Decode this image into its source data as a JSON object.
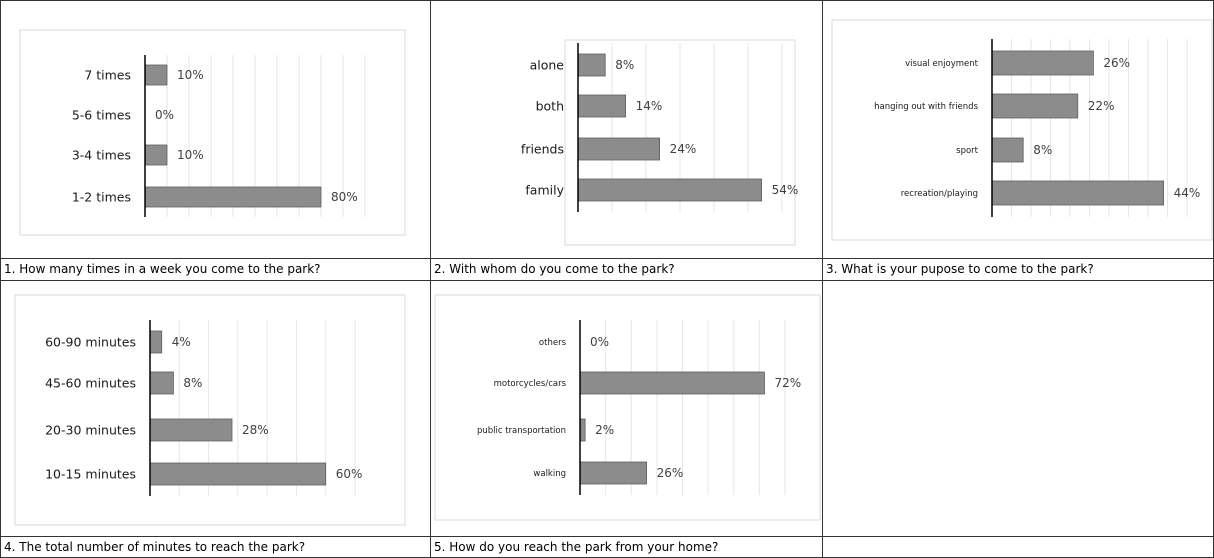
{
  "colors": {
    "bar": "#8c8c8c",
    "border": "#333333"
  },
  "captions": [
    "1. How many times in a week you come to the park?",
    "2. With whom do you come to the park?",
    "3. What is your pupose to come to the park?",
    "4. The total number of minutes to reach the park?",
    "5. How do you reach the park from your home?"
  ],
  "chart_data": [
    {
      "type": "bar",
      "orientation": "horizontal",
      "categories": [
        "7 times",
        "5-6 times",
        "3-4 times",
        "1-2 times"
      ],
      "values": [
        10,
        0,
        10,
        80
      ],
      "value_labels": [
        "10%",
        "0%",
        "10%",
        "80%"
      ],
      "xlim": [
        0,
        100
      ],
      "grid": true
    },
    {
      "type": "bar",
      "orientation": "horizontal",
      "categories": [
        "alone",
        "both",
        "friends",
        "family"
      ],
      "values": [
        8,
        14,
        24,
        54
      ],
      "value_labels": [
        "8%",
        "14%",
        "24%",
        "54%"
      ],
      "xlim": [
        0,
        60
      ],
      "grid": true
    },
    {
      "type": "bar",
      "orientation": "horizontal",
      "categories": [
        "visual enjoyment",
        "hanging out with friends",
        "sport",
        "recreation/playing"
      ],
      "values": [
        26,
        22,
        8,
        44
      ],
      "value_labels": [
        "26%",
        "22%",
        "8%",
        "44%"
      ],
      "xlim": [
        0,
        50
      ],
      "grid": true
    },
    {
      "type": "bar",
      "orientation": "horizontal",
      "categories": [
        "60-90 minutes",
        "45-60 minutes",
        "20-30 minutes",
        "10-15 minutes"
      ],
      "values": [
        4,
        8,
        28,
        60
      ],
      "value_labels": [
        "4%",
        "8%",
        "28%",
        "60%"
      ],
      "xlim": [
        0,
        70
      ],
      "grid": true
    },
    {
      "type": "bar",
      "orientation": "horizontal",
      "categories": [
        "others",
        "motorcycles/cars",
        "public transportation",
        "walking"
      ],
      "values": [
        0,
        72,
        2,
        26
      ],
      "value_labels": [
        "0%",
        "72%",
        "2%",
        "26%"
      ],
      "xlim": [
        0,
        80
      ],
      "grid": true
    }
  ]
}
